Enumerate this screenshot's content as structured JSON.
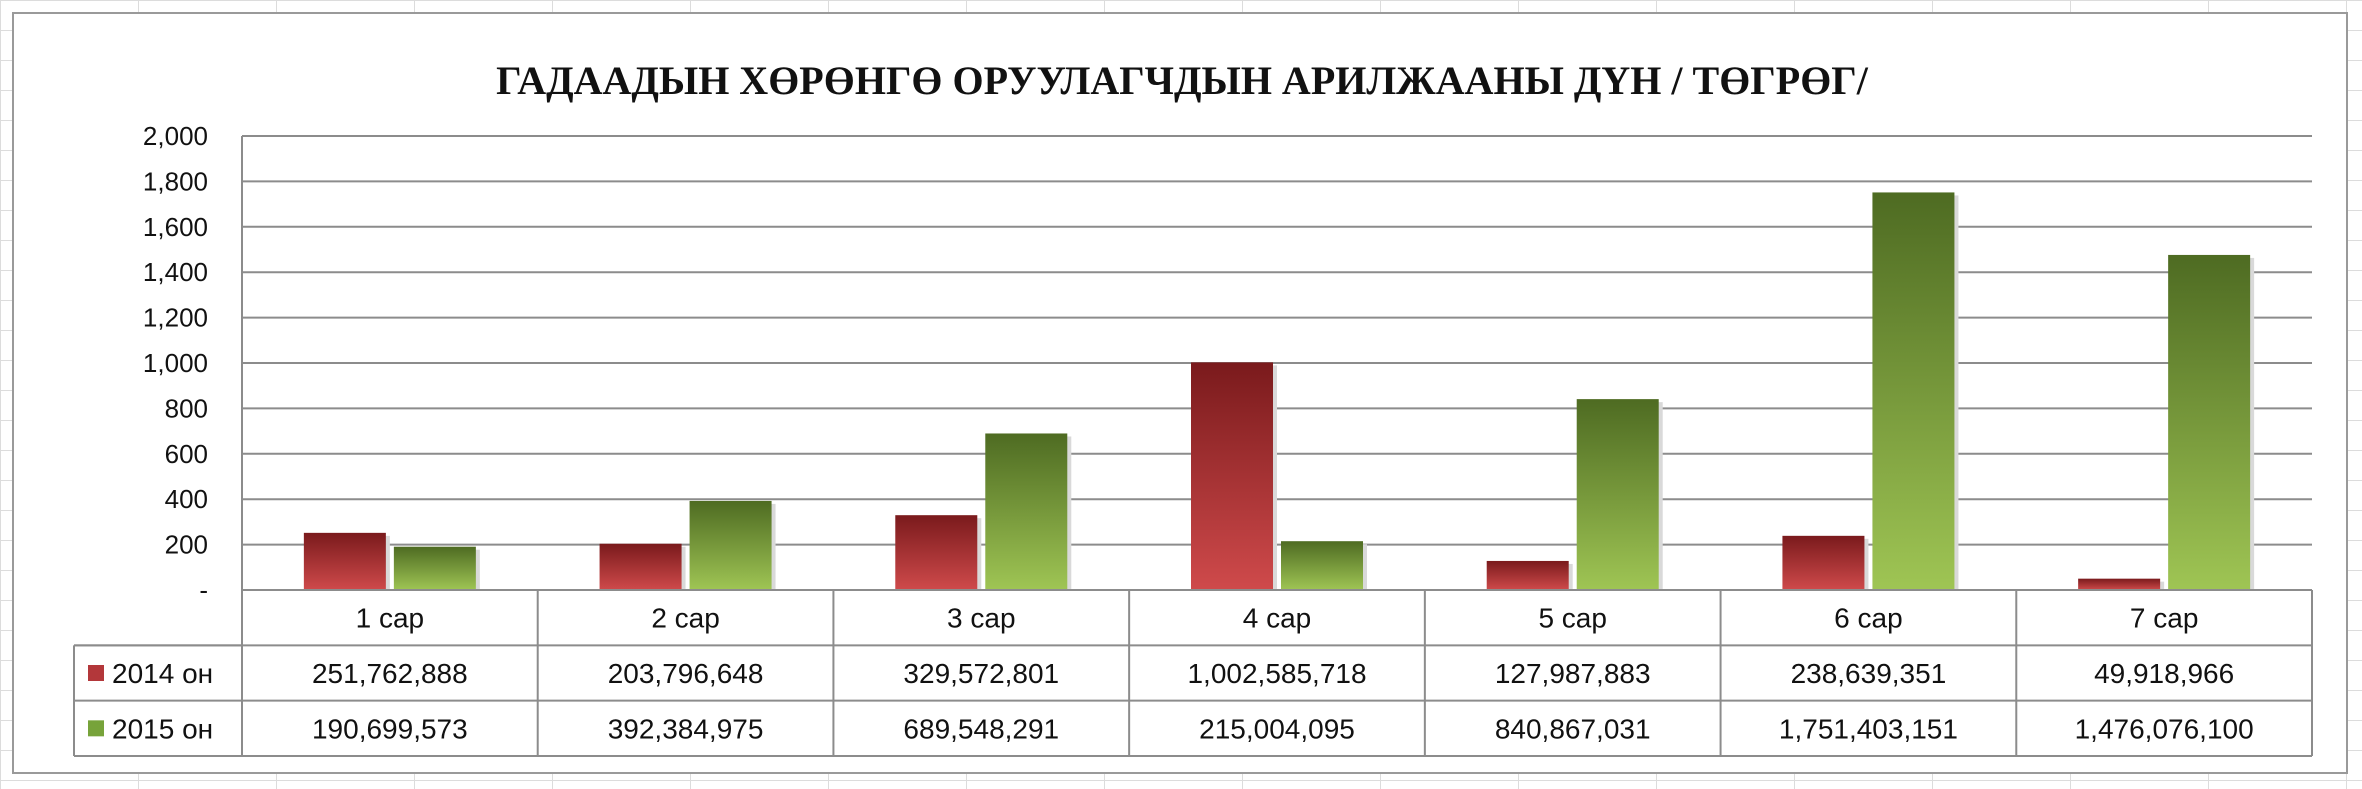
{
  "chart_data": {
    "type": "bar",
    "title": "ГАДААДЫН ХӨРӨНГӨ ОРУУЛАГЧДЫН АРИЛЖААНЫ ДҮН / ТӨГРӨГ/",
    "categories": [
      "1 сар",
      "2 сар",
      "3 сар",
      "4 сар",
      "5 сар",
      "6 сар",
      "7 сар"
    ],
    "y_ticks": [
      "-",
      "200",
      "400",
      "600",
      "800",
      "1,000",
      "1,200",
      "1,400",
      "1,600",
      "1,800",
      "2,000"
    ],
    "ylim": [
      0,
      2000
    ],
    "grid": true,
    "legend": "data-table",
    "series": [
      {
        "name": "2014 он",
        "color": "#b3373a",
        "values": [
          251.762888,
          203.796648,
          329.572801,
          1002.585718,
          127.987883,
          238.639351,
          49.918966
        ],
        "labels": [
          "251,762,888",
          "203,796,648",
          "329,572,801",
          "1,002,585,718",
          "127,987,883",
          "238,639,351",
          "49,918,966"
        ]
      },
      {
        "name": "2015 он",
        "color": "#77a33a",
        "values": [
          190.699573,
          392.384975,
          689.548291,
          215.004095,
          840.867031,
          1751.403151,
          1476.0761
        ],
        "labels": [
          "190,699,573",
          "392,384,975",
          "689,548,291",
          "215,004,095",
          "840,867,031",
          "1,751,403,151",
          "1,476,076,100"
        ]
      }
    ]
  }
}
